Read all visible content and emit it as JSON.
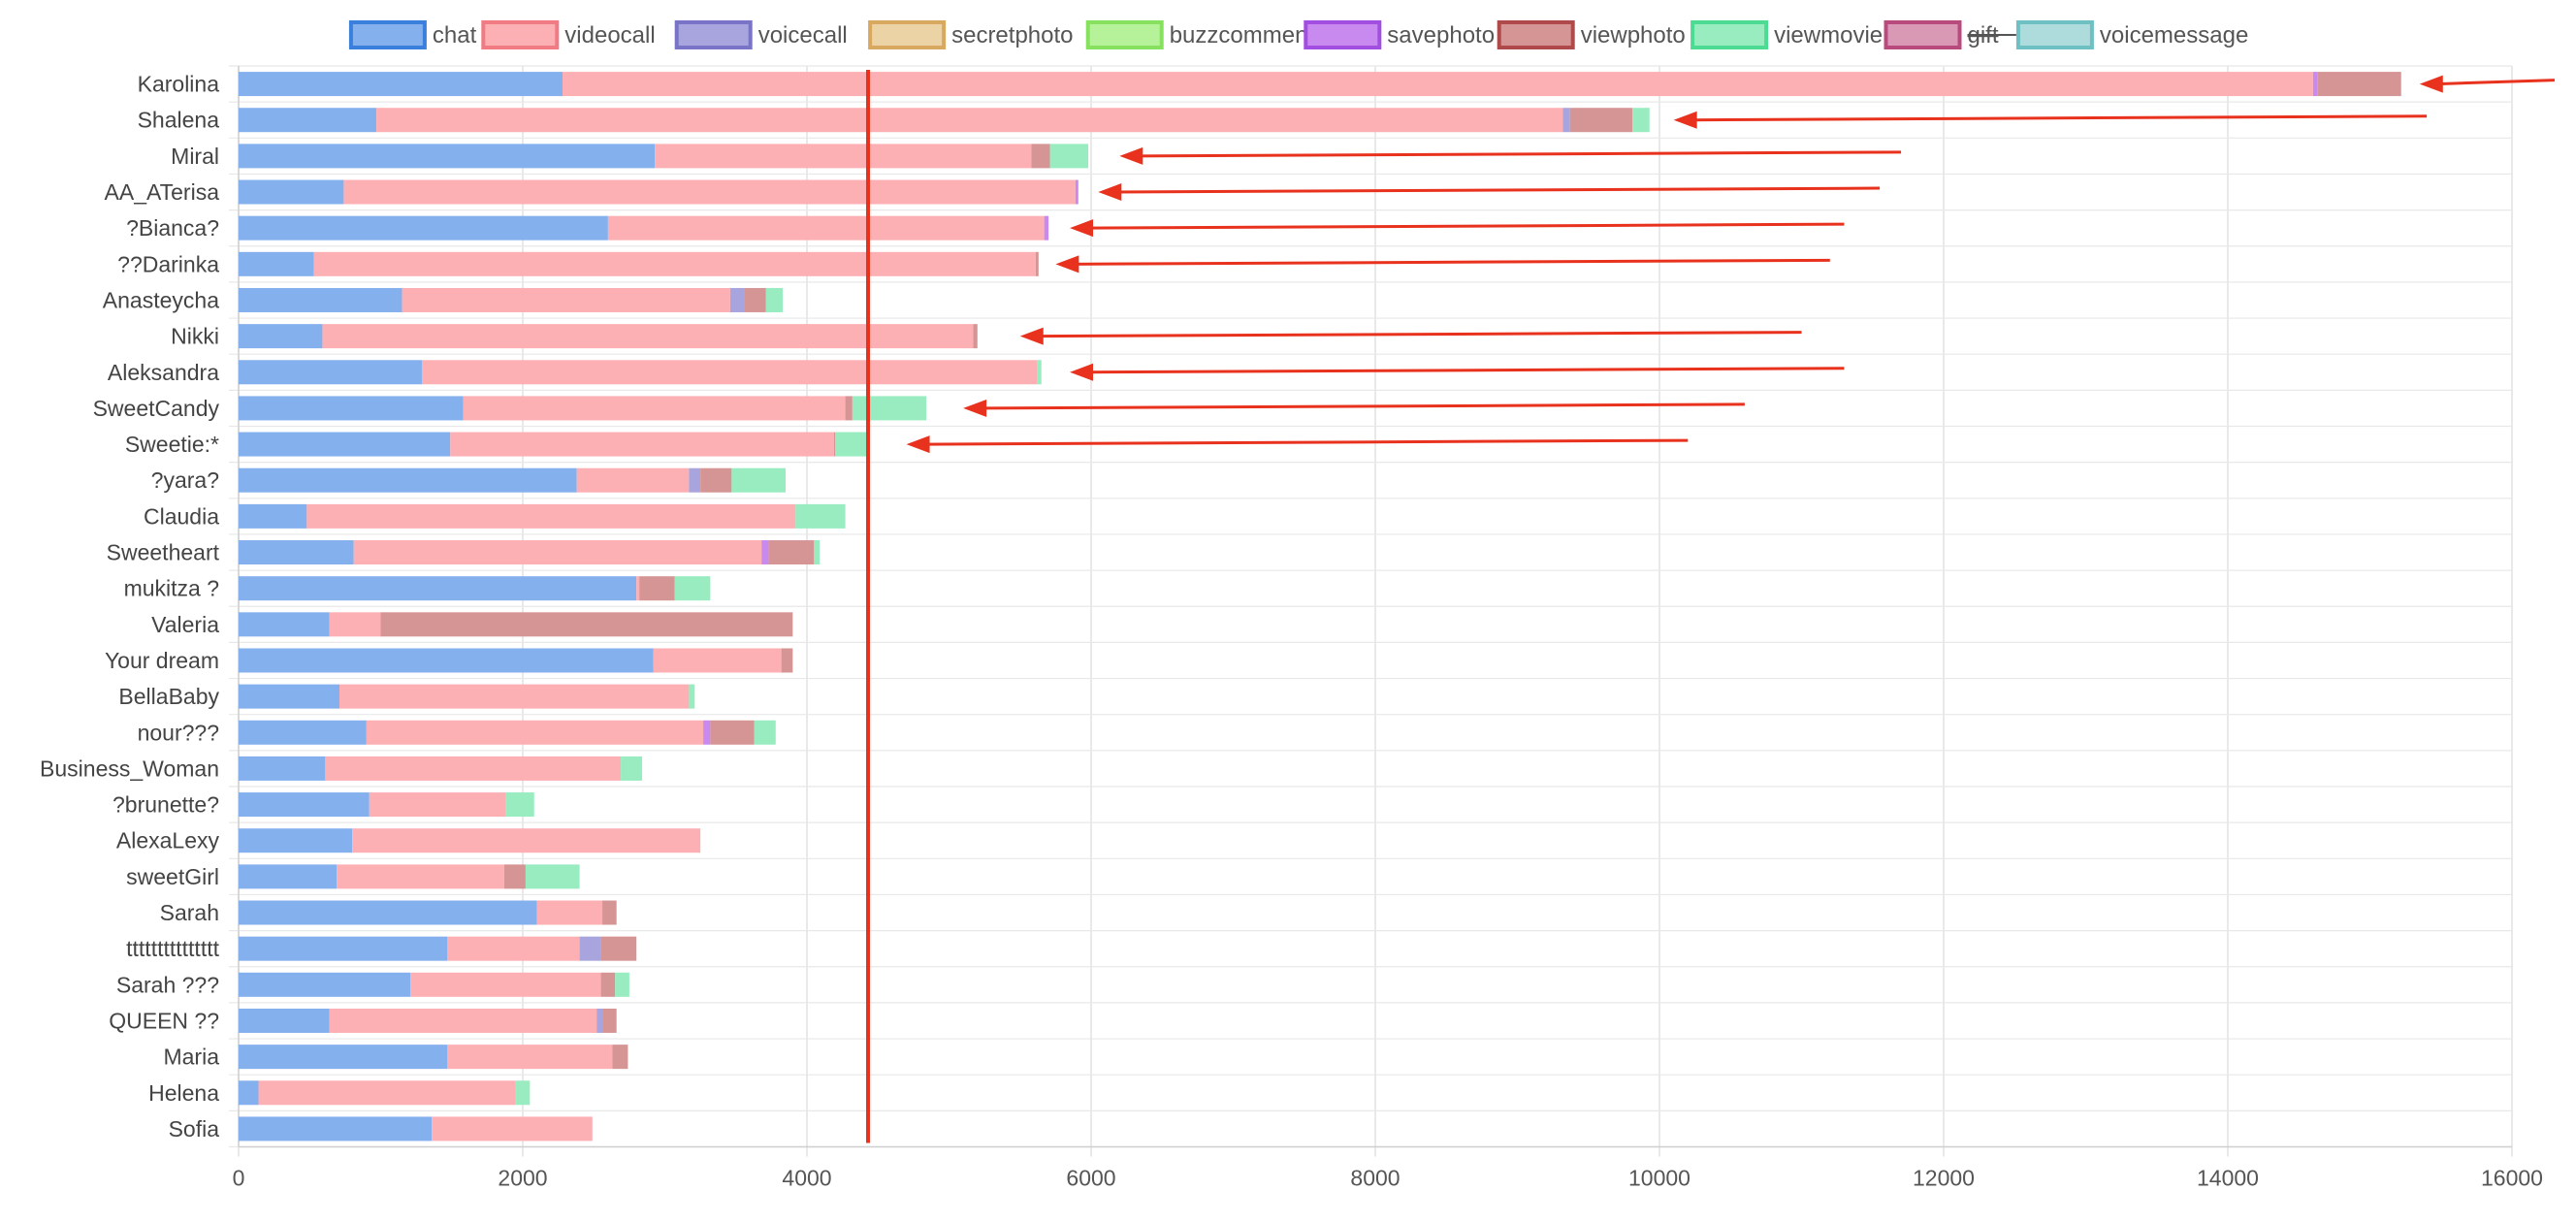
{
  "chart_data": {
    "type": "bar",
    "orientation": "horizontal",
    "stacked": true,
    "legend_position": "top",
    "grid": true,
    "xlim": [
      0,
      16000
    ],
    "x_ticks": [
      "0",
      "2000",
      "4000",
      "6000",
      "8000",
      "10000",
      "12000",
      "14000",
      "16000"
    ],
    "categories": [
      "Karolina",
      "Shalena",
      "Miral",
      "AA_ATerisa",
      "?Bianca?",
      "??Darinka",
      "Anasteycha",
      "Nikki",
      "Aleksandra",
      "SweetCandy",
      "Sweetie:*",
      "?yara?",
      "Claudia",
      "Sweetheart",
      "mukitza ?",
      "Valeria",
      "Your dream",
      "BellaBaby",
      "nour???",
      "Business_Woman",
      "?brunette?",
      "AlexaLexy",
      "sweetGirl",
      "Sarah",
      "ttttttttttttttt",
      "Sarah ???",
      "QUEEN ??",
      "Maria",
      "Helena",
      "Sofia"
    ],
    "series": [
      {
        "name": "chat",
        "color": "#85b0ee",
        "border": "#3a7fdc",
        "values": [
          2280,
          970,
          2930,
          740,
          2600,
          530,
          1150,
          590,
          1290,
          1580,
          1490,
          2380,
          480,
          810,
          2800,
          640,
          2920,
          710,
          900,
          610,
          920,
          800,
          690,
          2100,
          1470,
          1210,
          640,
          1470,
          140,
          1360
        ]
      },
      {
        "name": "videocall",
        "color": "#fdb0b4",
        "border": "#f07b82",
        "values": [
          12320,
          8350,
          2650,
          5150,
          3070,
          5080,
          2310,
          4580,
          4330,
          2690,
          2700,
          790,
          3440,
          2870,
          20,
          360,
          900,
          2460,
          2370,
          2080,
          960,
          2450,
          1180,
          460,
          930,
          1340,
          1880,
          1160,
          1810,
          1130
        ]
      },
      {
        "name": "voicecall",
        "color": "#a8a4dd",
        "border": "#7a74c8",
        "values": [
          0,
          50,
          0,
          0,
          0,
          0,
          100,
          0,
          0,
          0,
          0,
          80,
          0,
          0,
          0,
          0,
          0,
          0,
          0,
          0,
          0,
          0,
          0,
          0,
          150,
          0,
          40,
          0,
          0,
          0
        ]
      },
      {
        "name": "secretphoto",
        "color": "#ecd3a6",
        "border": "#d9a860",
        "values": [
          0,
          0,
          0,
          0,
          0,
          0,
          0,
          0,
          0,
          0,
          0,
          0,
          0,
          0,
          0,
          0,
          0,
          0,
          0,
          0,
          0,
          0,
          0,
          0,
          0,
          0,
          0,
          0,
          0,
          0
        ]
      },
      {
        "name": "buzzcomment",
        "color": "#b6f29a",
        "border": "#86e25e",
        "values": [
          0,
          0,
          0,
          0,
          0,
          0,
          0,
          0,
          0,
          0,
          0,
          0,
          0,
          0,
          0,
          0,
          0,
          0,
          0,
          0,
          0,
          0,
          0,
          0,
          0,
          0,
          0,
          0,
          0,
          0
        ]
      },
      {
        "name": "savephoto",
        "color": "#c98af0",
        "border": "#a24ee0",
        "values": [
          30,
          0,
          0,
          20,
          30,
          0,
          0,
          0,
          0,
          0,
          0,
          0,
          0,
          50,
          0,
          0,
          0,
          0,
          50,
          0,
          0,
          0,
          0,
          0,
          0,
          0,
          0,
          0,
          0,
          0
        ]
      },
      {
        "name": "viewphoto",
        "color": "#d69595",
        "border": "#b04a4a",
        "values": [
          590,
          440,
          130,
          0,
          0,
          20,
          150,
          30,
          0,
          50,
          10,
          220,
          0,
          320,
          250,
          2900,
          80,
          0,
          310,
          0,
          0,
          0,
          150,
          100,
          250,
          100,
          100,
          110,
          0,
          0
        ]
      },
      {
        "name": "viewmovie",
        "color": "#98ecc0",
        "border": "#4ddb94",
        "values": [
          0,
          120,
          270,
          0,
          0,
          0,
          120,
          0,
          30,
          520,
          230,
          380,
          350,
          40,
          250,
          0,
          0,
          40,
          150,
          150,
          200,
          0,
          380,
          0,
          0,
          100,
          0,
          0,
          100,
          0
        ]
      },
      {
        "name": "gift",
        "color": "#d999b4",
        "border": "#b84a7e",
        "hidden": true,
        "values": [
          0,
          0,
          0,
          0,
          0,
          0,
          0,
          0,
          0,
          0,
          0,
          0,
          0,
          0,
          0,
          0,
          0,
          0,
          0,
          0,
          0,
          0,
          0,
          0,
          0,
          0,
          0,
          0,
          0,
          0
        ]
      },
      {
        "name": "voicemessage",
        "color": "#aedbdc",
        "border": "#6fc0c2",
        "values": [
          0,
          0,
          0,
          0,
          0,
          0,
          0,
          0,
          0,
          0,
          0,
          0,
          0,
          0,
          0,
          0,
          0,
          0,
          0,
          0,
          0,
          0,
          0,
          0,
          0,
          0,
          0,
          0,
          0,
          0
        ]
      }
    ],
    "reference_line": {
      "x": 4430,
      "color": "#e8321e"
    },
    "annotation_arrows": {
      "color": "#e8321e",
      "targets": [
        {
          "category": "Karolina",
          "tail_x": 16300,
          "head_x": 15350
        },
        {
          "category": "Shalena",
          "tail_x": 15400,
          "head_x": 10100
        },
        {
          "category": "Miral",
          "tail_x": 11700,
          "head_x": 6200
        },
        {
          "category": "AA_ATerisa",
          "tail_x": 11550,
          "head_x": 6050
        },
        {
          "category": "?Bianca?",
          "tail_x": 11300,
          "head_x": 5850
        },
        {
          "category": "??Darinka",
          "tail_x": 11200,
          "head_x": 5750
        },
        {
          "category": "Nikki",
          "tail_x": 11000,
          "head_x": 5500
        },
        {
          "category": "Aleksandra",
          "tail_x": 11300,
          "head_x": 5850
        },
        {
          "category": "SweetCandy",
          "tail_x": 10600,
          "head_x": 5100
        },
        {
          "category": "Sweetie:*",
          "tail_x": 10200,
          "head_x": 4700
        }
      ]
    }
  }
}
